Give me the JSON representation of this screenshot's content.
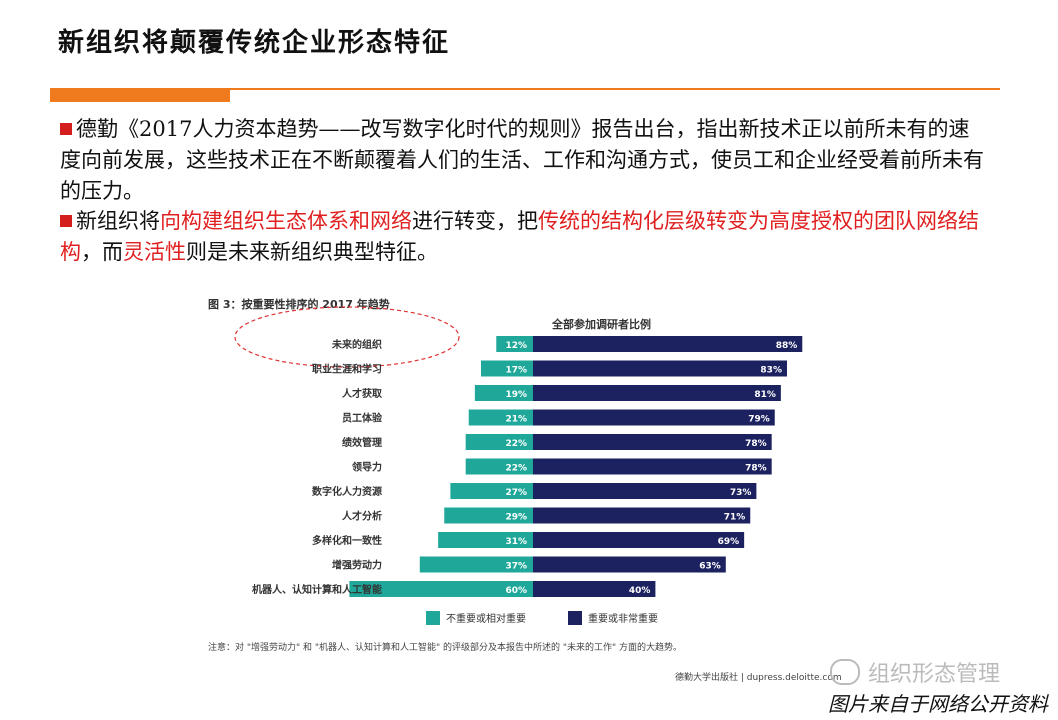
{
  "page": {
    "title": "新组织将颠覆传统企业形态特征",
    "para1": "德勤《2017人力资本趋势——改写数字化时代的规则》报告出台，指出新技术正以前所未有的速度向前发展，这些技术正在不断颠覆着人们的生活、工作和沟通方式，使员工和企业经受着前所未有的压力。",
    "para2": {
      "t1": "新组织将",
      "t2": "向构建组织生态体系和网络",
      "t3": "进行转变，把",
      "t4": "传统的结构化层级转变为高度授权的团队网络结构",
      "t5": "，而",
      "t6": "灵活性",
      "t7": "则是未来新组织典型特征。"
    },
    "watermark": "组织形态管理",
    "credit": "图片来自于网络公开资料"
  },
  "chart_data": {
    "type": "bar",
    "title": "图 3：按重要性排序的 2017 年趋势",
    "column_header": "全部参加调研者比例",
    "categories": [
      "未来的组织",
      "职业生涯和学习",
      "人才获取",
      "员工体验",
      "绩效管理",
      "领导力",
      "数字化人力资源",
      "人才分析",
      "多样化和一致性",
      "增强劳动力",
      "机器人、认知计算和人工智能"
    ],
    "series": [
      {
        "name": "不重要或相对重要",
        "color": "#1fa89a",
        "values": [
          12,
          17,
          19,
          21,
          22,
          22,
          27,
          29,
          31,
          37,
          60
        ]
      },
      {
        "name": "重要或非常重要",
        "color": "#1c2160",
        "values": [
          88,
          83,
          81,
          79,
          78,
          78,
          73,
          71,
          69,
          63,
          40
        ]
      }
    ],
    "unit": "%",
    "note": "注意：对 \"增强劳动力\" 和 \"机器人、认知计算和人工智能\" 的评级部分及本报告中所述的 \"未来的工作\" 方面的大趋势。",
    "source": "德勤大学出版社 | dupress.deloitte.com"
  }
}
